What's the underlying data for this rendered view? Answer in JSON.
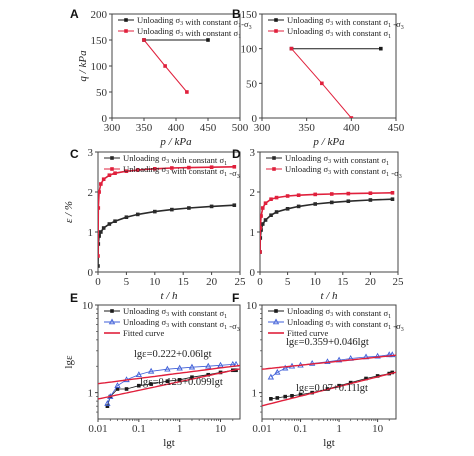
{
  "chart_data": [
    {
      "panel": "A",
      "type": "line",
      "xlabel": "p / kPa",
      "ylabel": "q / kPa",
      "xlim": [
        300,
        500
      ],
      "ylim": [
        0,
        200
      ],
      "xticks": [
        "300",
        "350",
        "400",
        "450",
        "500"
      ],
      "yticks": [
        "0",
        "50",
        "100",
        "150",
        "200"
      ],
      "legend_position": "top",
      "series": [
        {
          "name": "Unloading σ3 with constant σ1-σ3",
          "color": "#1a1a1a",
          "marker": "square",
          "x": [
            350,
            450
          ],
          "y": [
            150,
            150
          ]
        },
        {
          "name": "Unloading σ3 with constant σ1",
          "color": "#e0203c",
          "marker": "square",
          "x": [
            350,
            383,
            417
          ],
          "y": [
            150,
            100,
            50
          ]
        }
      ]
    },
    {
      "panel": "B",
      "type": "line",
      "xlabel": "p / kPa",
      "ylabel": "",
      "xlim": [
        300,
        450
      ],
      "ylim": [
        0,
        150
      ],
      "xticks": [
        "300",
        "350",
        "400",
        "450"
      ],
      "yticks": [
        "0",
        "50",
        "100",
        "150"
      ],
      "legend_position": "top",
      "series": [
        {
          "name": "Unloading σ3 with constant σ1 -σ3",
          "color": "#1a1a1a",
          "marker": "square",
          "x": [
            333,
            433
          ],
          "y": [
            100,
            100
          ]
        },
        {
          "name": "Unloading σ3 with constant σ1",
          "color": "#e0203c",
          "marker": "square",
          "x": [
            333,
            367,
            400
          ],
          "y": [
            100,
            50,
            0
          ]
        }
      ]
    },
    {
      "panel": "C",
      "type": "line",
      "xlabel": "t / h",
      "ylabel": "ε / %",
      "xlim": [
        0,
        25
      ],
      "ylim": [
        0,
        3
      ],
      "xticks": [
        "0",
        "5",
        "10",
        "15",
        "20",
        "25"
      ],
      "yticks": [
        "0",
        "1",
        "2",
        "3"
      ],
      "legend_position": "top",
      "series": [
        {
          "name": "Unloading σ3 with constant σ1",
          "color": "#2a2a2a",
          "marker": "square",
          "x": [
            0,
            0.05,
            0.2,
            0.5,
            1,
            2,
            3,
            5,
            7,
            10,
            13,
            16,
            20,
            24
          ],
          "y": [
            0.15,
            0.7,
            0.9,
            1.0,
            1.1,
            1.2,
            1.27,
            1.37,
            1.44,
            1.51,
            1.56,
            1.6,
            1.64,
            1.67
          ]
        },
        {
          "name": "Unloading σ3 with constant σ1 -σ3",
          "color": "#e0203c",
          "marker": "square",
          "x": [
            0,
            0.05,
            0.2,
            0.5,
            1,
            2,
            3,
            5,
            7,
            10,
            13,
            16,
            20,
            24
          ],
          "y": [
            0.4,
            1.6,
            2.0,
            2.2,
            2.32,
            2.42,
            2.47,
            2.52,
            2.55,
            2.58,
            2.6,
            2.61,
            2.62,
            2.63
          ]
        }
      ]
    },
    {
      "panel": "D",
      "type": "line",
      "xlabel": "t / h",
      "ylabel": "",
      "xlim": [
        0,
        25
      ],
      "ylim": [
        0,
        3
      ],
      "xticks": [
        "0",
        "5",
        "10",
        "15",
        "20",
        "25"
      ],
      "yticks": [
        "0",
        "1",
        "2",
        "3"
      ],
      "legend_position": "top",
      "series": [
        {
          "name": "Unloading σ3 with constant σ1",
          "color": "#2a2a2a",
          "marker": "square",
          "x": [
            0,
            0.05,
            0.2,
            0.5,
            1,
            2,
            3,
            5,
            7,
            10,
            13,
            16,
            20,
            24
          ],
          "y": [
            0.5,
            0.85,
            1.05,
            1.2,
            1.3,
            1.42,
            1.5,
            1.58,
            1.64,
            1.7,
            1.74,
            1.77,
            1.8,
            1.82
          ]
        },
        {
          "name": "Unloading σ3 with constant σ1 -σ3",
          "color": "#e0203c",
          "marker": "square",
          "x": [
            0,
            0.05,
            0.2,
            0.5,
            1,
            2,
            3,
            5,
            7,
            10,
            13,
            16,
            20,
            24
          ],
          "y": [
            0.5,
            1.1,
            1.4,
            1.6,
            1.72,
            1.82,
            1.86,
            1.9,
            1.92,
            1.94,
            1.95,
            1.96,
            1.97,
            1.98
          ]
        }
      ]
    },
    {
      "panel": "E",
      "type": "scatter",
      "scale": "log-log",
      "xlabel": "lgt",
      "ylabel": "lgε",
      "xlim": [
        0.01,
        30
      ],
      "ylim": [
        0.5,
        10
      ],
      "xticks": [
        "0.01",
        "0.1",
        "1",
        "10"
      ],
      "yticks": [
        "1",
        "10"
      ],
      "legend_position": "top",
      "annotations": [
        "lgε=0.222+0.06lgt",
        "lgε=0.125+0.099lgt"
      ],
      "series": [
        {
          "name": "Unloading σ3 with constant σ1",
          "color": "#1a1a1a",
          "marker": "square",
          "x": [
            0.017,
            0.02,
            0.03,
            0.05,
            0.1,
            0.2,
            0.5,
            1,
            2,
            5,
            10,
            20,
            24
          ],
          "y": [
            0.7,
            0.9,
            1.1,
            1.1,
            1.2,
            1.25,
            1.35,
            1.4,
            1.5,
            1.6,
            1.7,
            1.8,
            1.8
          ]
        },
        {
          "name": "Unloading σ3 with constant σ1 -σ3",
          "color": "#3f5fd8",
          "marker": "triangle",
          "x": [
            0.017,
            0.02,
            0.03,
            0.05,
            0.1,
            0.2,
            0.5,
            1,
            2,
            5,
            10,
            20,
            24
          ],
          "y": [
            0.75,
            0.9,
            1.2,
            1.4,
            1.6,
            1.75,
            1.85,
            1.9,
            1.95,
            2.0,
            2.05,
            2.1,
            2.1
          ]
        },
        {
          "name": "Fitted curve",
          "color": "#e0203c",
          "marker": "none",
          "fit": "power",
          "a": 0.222,
          "b": 0.06
        },
        {
          "name": "",
          "color": "#e0203c",
          "marker": "none",
          "fit": "power",
          "a": 0.125,
          "b": 0.099
        }
      ]
    },
    {
      "panel": "F",
      "type": "scatter",
      "scale": "log-log",
      "xlabel": "lgt",
      "ylabel": "",
      "xlim": [
        0.01,
        30
      ],
      "ylim": [
        0.5,
        10
      ],
      "xticks": [
        "0.01",
        "0.1",
        "1",
        "10"
      ],
      "yticks": [
        "1",
        "10"
      ],
      "legend_position": "top",
      "annotations": [
        "lgε=0.359+0.046lgt",
        "lgε=0.07+0.11lgt"
      ],
      "series": [
        {
          "name": "Unloading σ3 with constant σ1",
          "color": "#1a1a1a",
          "marker": "square",
          "x": [
            0.017,
            0.025,
            0.04,
            0.06,
            0.1,
            0.2,
            0.5,
            1,
            2,
            5,
            10,
            20,
            24
          ],
          "y": [
            0.85,
            0.87,
            0.9,
            0.92,
            0.95,
            1.0,
            1.1,
            1.2,
            1.3,
            1.45,
            1.55,
            1.65,
            1.7
          ]
        },
        {
          "name": "Unloading σ3 with constant σ1 -σ3",
          "color": "#3f5fd8",
          "marker": "triangle",
          "x": [
            0.017,
            0.025,
            0.04,
            0.06,
            0.1,
            0.2,
            0.5,
            1,
            2,
            5,
            10,
            20,
            24
          ],
          "y": [
            1.5,
            1.7,
            1.9,
            2.0,
            2.05,
            2.15,
            2.25,
            2.35,
            2.45,
            2.55,
            2.6,
            2.7,
            2.7
          ]
        },
        {
          "name": "Fitted curve",
          "color": "#e0203c",
          "marker": "none",
          "fit": "power",
          "a": 0.359,
          "b": 0.046
        },
        {
          "name": "",
          "color": "#e0203c",
          "marker": "none",
          "fit": "power",
          "a": 0.07,
          "b": 0.11
        }
      ]
    }
  ]
}
